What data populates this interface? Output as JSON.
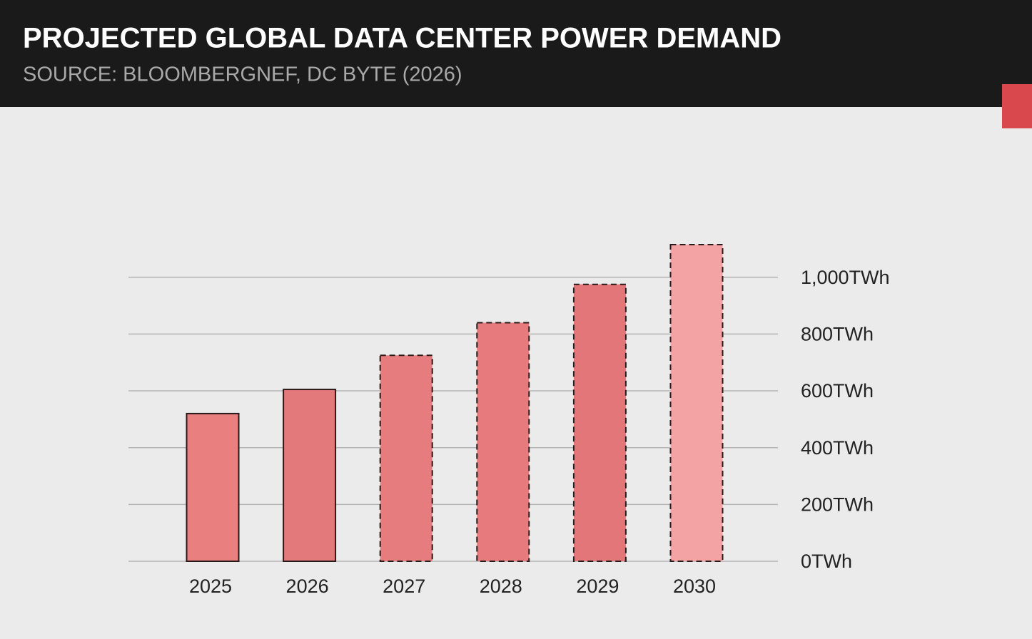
{
  "chart_data": {
    "type": "bar",
    "title": "PROJECTED GLOBAL DATA CENTER POWER DEMAND",
    "subtitle": "SOURCE: BLOOMBERGNEF, DC BYTE (2026)",
    "categories": [
      "2025",
      "2026",
      "2027",
      "2028",
      "2029",
      "2030"
    ],
    "values": [
      520,
      605,
      725,
      840,
      975,
      1115
    ],
    "colors": [
      "#ea7f80",
      "#e4797b",
      "#e67c7e",
      "#e67a7c",
      "#e37678",
      "#f3a3a3"
    ],
    "bar_border_styles": [
      "solid",
      "solid",
      "dashed",
      "dashed",
      "dashed",
      "dashed"
    ],
    "ylim": [
      0,
      1150
    ],
    "yticks": [
      {
        "value": 0,
        "label": "0TWh"
      },
      {
        "value": 200,
        "label": "200TWh"
      },
      {
        "value": 400,
        "label": "400TWh"
      },
      {
        "value": 600,
        "label": "600TWh"
      },
      {
        "value": 800,
        "label": "800TWh"
      },
      {
        "value": 1000,
        "label": "1,000TWh"
      }
    ],
    "grid": true
  }
}
